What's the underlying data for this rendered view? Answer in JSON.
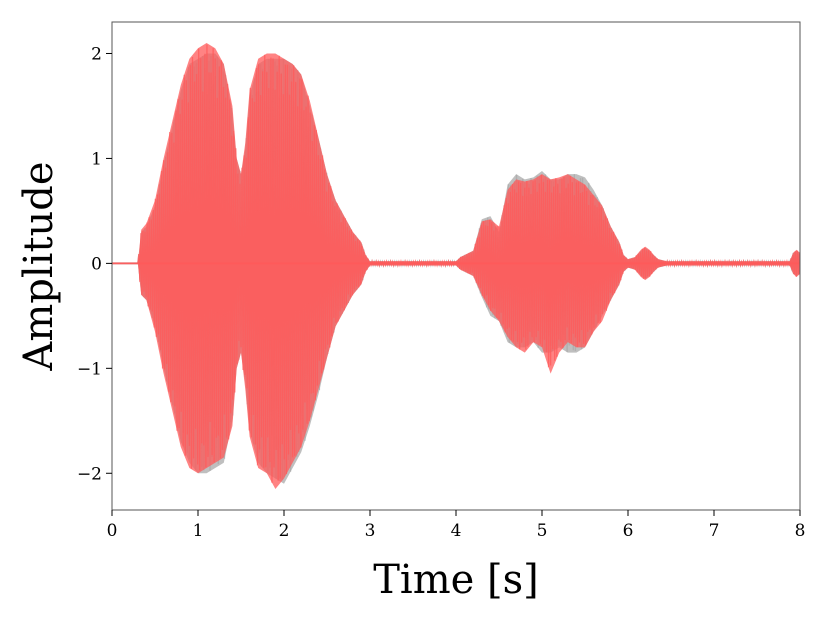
{
  "chart_data": {
    "type": "line",
    "title": "",
    "xlabel": "Time [s]",
    "ylabel": "Amplitude",
    "xlim": [
      0,
      8
    ],
    "ylim": [
      -2.35,
      2.3
    ],
    "xticks": [
      {
        "value": 0,
        "label": "0"
      },
      {
        "value": 1,
        "label": "1"
      },
      {
        "value": 2,
        "label": "2"
      },
      {
        "value": 3,
        "label": "3"
      },
      {
        "value": 4,
        "label": "4"
      },
      {
        "value": 5,
        "label": "5"
      },
      {
        "value": 6,
        "label": "6"
      },
      {
        "value": 7,
        "label": "7"
      },
      {
        "value": 8,
        "label": "8"
      }
    ],
    "yticks": [
      {
        "value": -2,
        "label": "−2"
      },
      {
        "value": -1,
        "label": "−1"
      },
      {
        "value": 0,
        "label": "0"
      },
      {
        "value": 1,
        "label": "1"
      },
      {
        "value": 2,
        "label": "2"
      }
    ],
    "grid": false,
    "legend": "none",
    "series": [
      {
        "color": "#a9a9a9",
        "opacity": 0.75,
        "x": [
          0,
          0.3,
          0.34,
          0.4,
          0.5,
          0.6,
          0.7,
          0.8,
          0.9,
          1.0,
          1.1,
          1.2,
          1.3,
          1.4,
          1.45,
          1.5,
          1.55,
          1.6,
          1.7,
          1.8,
          1.9,
          2.0,
          2.1,
          2.2,
          2.3,
          2.4,
          2.5,
          2.6,
          2.7,
          2.8,
          2.9,
          2.95,
          3.0,
          3.5,
          4.0,
          4.05,
          4.1,
          4.2,
          4.3,
          4.4,
          4.5,
          4.6,
          4.7,
          4.8,
          4.9,
          5.0,
          5.1,
          5.2,
          5.3,
          5.4,
          5.5,
          5.6,
          5.7,
          5.8,
          5.9,
          5.95,
          6.0,
          6.08,
          6.15,
          6.2,
          6.25,
          6.3,
          6.35,
          6.45,
          7.0,
          7.88,
          7.92,
          7.96,
          8.0
        ],
        "upper": [
          0.0,
          0.0,
          0.3,
          0.35,
          0.55,
          0.95,
          1.3,
          1.65,
          1.9,
          1.95,
          2.0,
          2.0,
          1.9,
          1.45,
          1.0,
          0.85,
          1.1,
          1.6,
          1.9,
          1.95,
          1.95,
          1.95,
          1.9,
          1.8,
          1.5,
          1.2,
          0.85,
          0.6,
          0.45,
          0.3,
          0.2,
          0.08,
          0.02,
          0.02,
          0.02,
          0.06,
          0.08,
          0.12,
          0.42,
          0.45,
          0.3,
          0.75,
          0.85,
          0.8,
          0.82,
          0.88,
          0.8,
          0.8,
          0.85,
          0.85,
          0.82,
          0.7,
          0.55,
          0.35,
          0.2,
          0.08,
          0.04,
          0.06,
          0.12,
          0.15,
          0.12,
          0.08,
          0.04,
          0.02,
          0.02,
          0.02,
          0.1,
          0.12,
          0.1
        ],
        "lower": [
          0.0,
          0.0,
          -0.3,
          -0.35,
          -0.6,
          -1.0,
          -1.35,
          -1.7,
          -1.9,
          -2.0,
          -2.0,
          -1.95,
          -1.9,
          -1.5,
          -1.0,
          -0.85,
          -1.15,
          -1.6,
          -1.9,
          -2.0,
          -2.05,
          -2.1,
          -1.95,
          -1.8,
          -1.55,
          -1.25,
          -0.9,
          -0.6,
          -0.45,
          -0.3,
          -0.2,
          -0.08,
          -0.02,
          -0.02,
          -0.02,
          -0.06,
          -0.08,
          -0.12,
          -0.32,
          -0.5,
          -0.55,
          -0.75,
          -0.8,
          -0.8,
          -0.75,
          -0.85,
          -0.85,
          -0.8,
          -0.85,
          -0.85,
          -0.8,
          -0.65,
          -0.5,
          -0.35,
          -0.2,
          -0.08,
          -0.04,
          -0.06,
          -0.12,
          -0.15,
          -0.12,
          -0.08,
          -0.04,
          -0.02,
          -0.02,
          -0.02,
          -0.1,
          -0.12,
          -0.1
        ]
      },
      {
        "color": "#ff5a5a",
        "opacity": 0.75,
        "x": [
          0,
          0.3,
          0.34,
          0.4,
          0.5,
          0.6,
          0.7,
          0.8,
          0.9,
          1.0,
          1.1,
          1.2,
          1.3,
          1.4,
          1.45,
          1.5,
          1.55,
          1.6,
          1.7,
          1.8,
          1.9,
          2.0,
          2.1,
          2.2,
          2.3,
          2.4,
          2.5,
          2.6,
          2.7,
          2.8,
          2.9,
          2.95,
          3.0,
          3.5,
          4.0,
          4.05,
          4.1,
          4.2,
          4.3,
          4.4,
          4.5,
          4.6,
          4.7,
          4.8,
          4.9,
          5.0,
          5.1,
          5.2,
          5.3,
          5.4,
          5.5,
          5.6,
          5.7,
          5.8,
          5.9,
          5.95,
          6.0,
          6.08,
          6.15,
          6.2,
          6.25,
          6.3,
          6.35,
          6.45,
          7.0,
          7.88,
          7.92,
          7.96,
          8.0
        ],
        "upper": [
          0.0,
          0.0,
          0.32,
          0.38,
          0.6,
          1.0,
          1.35,
          1.7,
          1.95,
          2.05,
          2.1,
          2.05,
          1.9,
          1.5,
          1.0,
          0.85,
          1.15,
          1.65,
          1.95,
          2.0,
          2.0,
          1.95,
          1.9,
          1.8,
          1.55,
          1.2,
          0.85,
          0.6,
          0.45,
          0.3,
          0.2,
          0.08,
          0.02,
          0.02,
          0.02,
          0.06,
          0.08,
          0.12,
          0.4,
          0.42,
          0.35,
          0.7,
          0.8,
          0.78,
          0.8,
          0.85,
          0.8,
          0.82,
          0.85,
          0.8,
          0.75,
          0.65,
          0.55,
          0.35,
          0.2,
          0.08,
          0.04,
          0.06,
          0.13,
          0.16,
          0.13,
          0.08,
          0.04,
          0.02,
          0.02,
          0.02,
          0.1,
          0.13,
          0.1
        ],
        "lower": [
          0.0,
          0.0,
          -0.3,
          -0.35,
          -0.65,
          -1.05,
          -1.4,
          -1.75,
          -1.95,
          -2.0,
          -1.95,
          -1.9,
          -1.85,
          -1.55,
          -1.0,
          -0.85,
          -1.2,
          -1.65,
          -1.95,
          -2.0,
          -2.15,
          -2.05,
          -1.9,
          -1.75,
          -1.5,
          -1.2,
          -0.9,
          -0.6,
          -0.45,
          -0.3,
          -0.2,
          -0.08,
          -0.02,
          -0.02,
          -0.02,
          -0.06,
          -0.08,
          -0.12,
          -0.3,
          -0.45,
          -0.55,
          -0.7,
          -0.8,
          -0.85,
          -0.75,
          -0.8,
          -1.05,
          -0.85,
          -0.75,
          -0.8,
          -0.8,
          -0.65,
          -0.55,
          -0.35,
          -0.2,
          -0.08,
          -0.04,
          -0.06,
          -0.13,
          -0.16,
          -0.13,
          -0.08,
          -0.04,
          -0.02,
          -0.02,
          -0.02,
          -0.1,
          -0.13,
          -0.1
        ]
      }
    ]
  }
}
